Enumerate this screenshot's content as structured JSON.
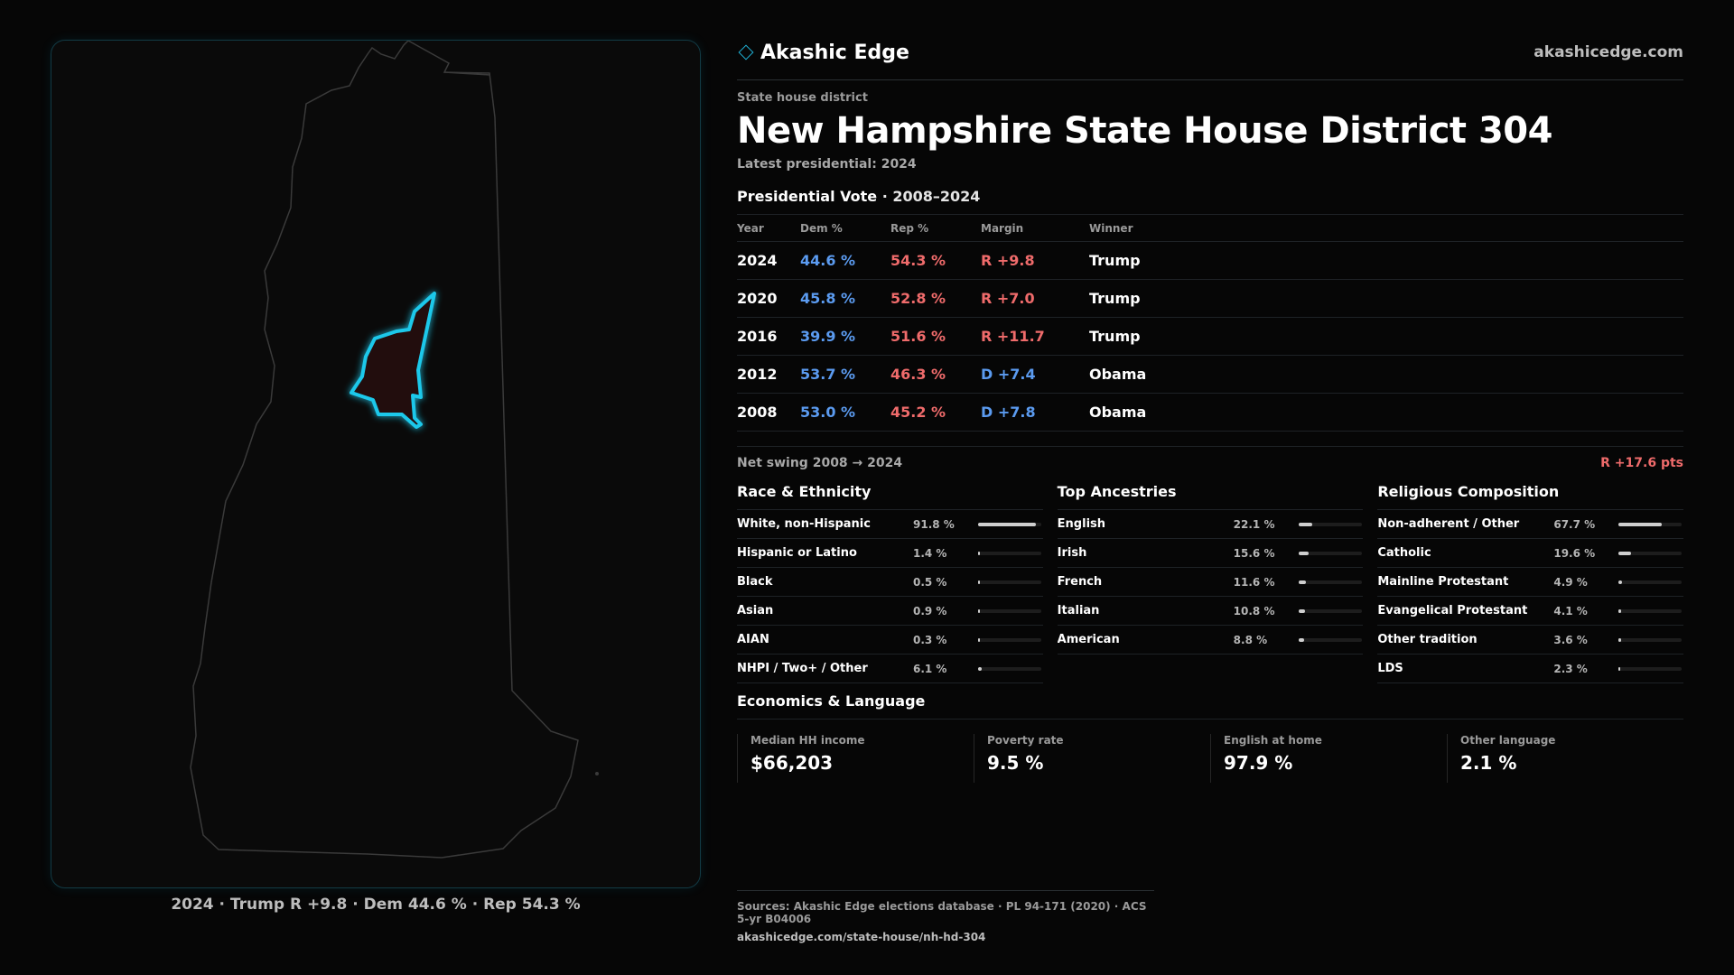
{
  "brand": {
    "name": "Akashic Edge",
    "url": "akashicedge.com",
    "icon": "diamond-icon",
    "accent": "#1fb3d8"
  },
  "header": {
    "kicker": "State house district",
    "title": "New Hampshire State House District 304",
    "subtitle": "Latest presidential: 2024"
  },
  "presidential": {
    "title": "Presidential Vote",
    "range": " · 2008–2024",
    "columns": [
      "Year",
      "Dem %",
      "Rep %",
      "Margin",
      "Winner"
    ],
    "rows": [
      {
        "year": "2024",
        "dem": "44.6 %",
        "rep": "54.3 %",
        "margin": "R +9.8",
        "party": "R",
        "winner": "Trump"
      },
      {
        "year": "2020",
        "dem": "45.8 %",
        "rep": "52.8 %",
        "margin": "R +7.0",
        "party": "R",
        "winner": "Trump"
      },
      {
        "year": "2016",
        "dem": "39.9 %",
        "rep": "51.6 %",
        "margin": "R +11.7",
        "party": "R",
        "winner": "Trump"
      },
      {
        "year": "2012",
        "dem": "53.7 %",
        "rep": "46.3 %",
        "margin": "D +7.4",
        "party": "D",
        "winner": "Obama"
      },
      {
        "year": "2008",
        "dem": "53.0 %",
        "rep": "45.2 %",
        "margin": "D +7.8",
        "party": "D",
        "winner": "Obama"
      }
    ],
    "net_swing_label": "Net swing 2008 → 2024",
    "net_swing_value": "R +17.6 pts"
  },
  "demographics": [
    {
      "title": "Race & Ethnicity",
      "items": [
        {
          "label": "White, non-Hispanic",
          "value": "91.8 %",
          "pct": 91.8
        },
        {
          "label": "Hispanic or Latino",
          "value": "1.4 %",
          "pct": 1.4
        },
        {
          "label": "Black",
          "value": "0.5 %",
          "pct": 0.5
        },
        {
          "label": "Asian",
          "value": "0.9 %",
          "pct": 0.9
        },
        {
          "label": "AIAN",
          "value": "0.3 %",
          "pct": 0.3
        },
        {
          "label": "NHPI / Two+ / Other",
          "value": "6.1 %",
          "pct": 6.1
        }
      ]
    },
    {
      "title": "Top Ancestries",
      "items": [
        {
          "label": "English",
          "value": "22.1 %",
          "pct": 22.1
        },
        {
          "label": "Irish",
          "value": "15.6 %",
          "pct": 15.6
        },
        {
          "label": "French",
          "value": "11.6 %",
          "pct": 11.6
        },
        {
          "label": "Italian",
          "value": "10.8 %",
          "pct": 10.8
        },
        {
          "label": "American",
          "value": "8.8 %",
          "pct": 8.8
        }
      ]
    },
    {
      "title": "Religious Composition",
      "items": [
        {
          "label": "Non-adherent / Other",
          "value": "67.7 %",
          "pct": 67.7
        },
        {
          "label": "Catholic",
          "value": "19.6 %",
          "pct": 19.6
        },
        {
          "label": "Mainline Protestant",
          "value": "4.9 %",
          "pct": 4.9
        },
        {
          "label": "Evangelical Protestant",
          "value": "4.1 %",
          "pct": 4.1
        },
        {
          "label": "Other tradition",
          "value": "3.6 %",
          "pct": 3.6
        },
        {
          "label": "LDS",
          "value": "2.3 %",
          "pct": 2.3
        }
      ]
    }
  ],
  "economics": {
    "title": "Economics & Language",
    "items": [
      {
        "label": "Median HH income",
        "value": "$66,203"
      },
      {
        "label": "Poverty rate",
        "value": "9.5 %"
      },
      {
        "label": "English at home",
        "value": "97.9 %"
      },
      {
        "label": "Other language",
        "value": "2.1 %"
      }
    ]
  },
  "map": {
    "caption": "2024 · Trump R +9.8 · Dem 44.6 % · Rep 54.3 %",
    "highlight_color": "#1ec8ea",
    "outline_color": "#3a3a3a"
  },
  "sources": {
    "line": "Sources: Akashic Edge elections database · PL 94-171 (2020) · ACS 5-yr B04006",
    "url": "akashicedge.com/state-house/nh-hd-304"
  },
  "colors": {
    "dem": "#5b9bf0",
    "rep": "#ef6b6b"
  }
}
